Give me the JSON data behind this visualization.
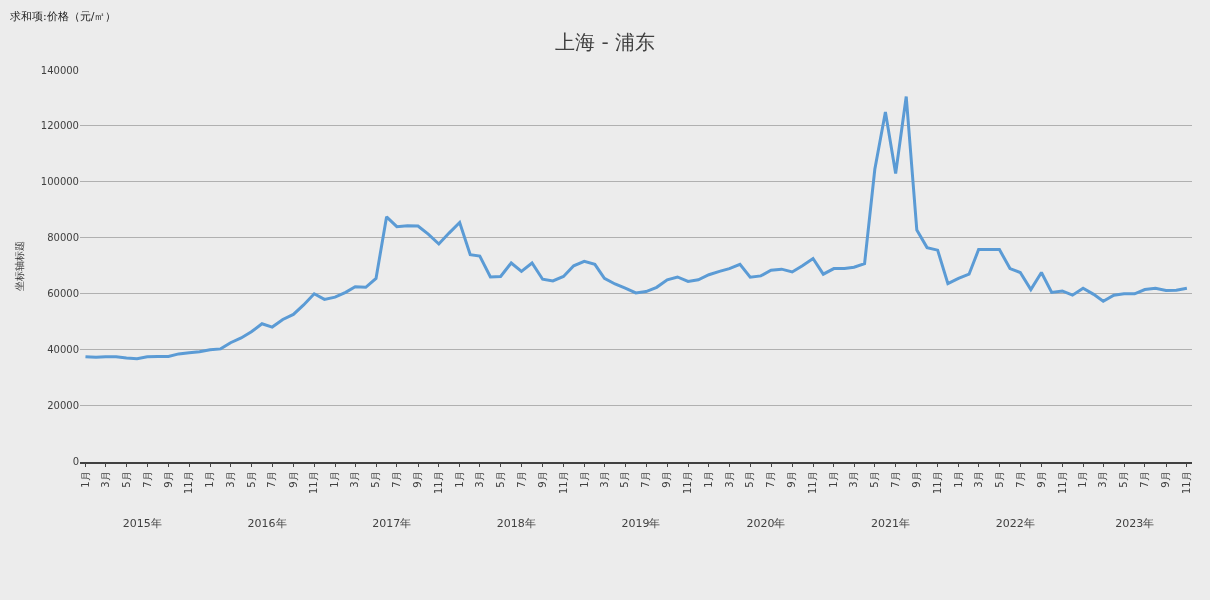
{
  "chart_data": {
    "type": "line",
    "title": "上海 - 浦东",
    "ylabel": "坐标轴标题",
    "annotations": [
      "求和项:价格（元/㎡）"
    ],
    "x": [
      "2015-01",
      "2015-02",
      "2015-03",
      "2015-04",
      "2015-05",
      "2015-06",
      "2015-07",
      "2015-08",
      "2015-09",
      "2015-10",
      "2015-11",
      "2015-12",
      "2016-01",
      "2016-02",
      "2016-03",
      "2016-04",
      "2016-05",
      "2016-06",
      "2016-07",
      "2016-08",
      "2016-09",
      "2016-10",
      "2016-11",
      "2016-12",
      "2017-01",
      "2017-02",
      "2017-03",
      "2017-04",
      "2017-05",
      "2017-06",
      "2017-07",
      "2017-08",
      "2017-09",
      "2017-10",
      "2017-11",
      "2017-12",
      "2018-01",
      "2018-02",
      "2018-03",
      "2018-04",
      "2018-05",
      "2018-06",
      "2018-07",
      "2018-08",
      "2018-09",
      "2018-10",
      "2018-11",
      "2018-12",
      "2019-01",
      "2019-02",
      "2019-03",
      "2019-04",
      "2019-05",
      "2019-06",
      "2019-07",
      "2019-08",
      "2019-09",
      "2019-10",
      "2019-11",
      "2019-12",
      "2020-01",
      "2020-02",
      "2020-03",
      "2020-04",
      "2020-05",
      "2020-06",
      "2020-07",
      "2020-08",
      "2020-09",
      "2020-10",
      "2020-11",
      "2020-12",
      "2021-01",
      "2021-02",
      "2021-03",
      "2021-04",
      "2021-05",
      "2021-06",
      "2021-07",
      "2021-08",
      "2021-09",
      "2021-10",
      "2021-11",
      "2021-12",
      "2022-01",
      "2022-02",
      "2022-03",
      "2022-04",
      "2022-05",
      "2022-06",
      "2022-07",
      "2022-08",
      "2022-09",
      "2022-10",
      "2022-11",
      "2022-12",
      "2023-01",
      "2023-02",
      "2023-03",
      "2023-04",
      "2023-05",
      "2023-06",
      "2023-07",
      "2023-08",
      "2023-09",
      "2023-10",
      "2023-11"
    ],
    "series": [
      {
        "color": "#5b9bd5",
        "values": [
          37500,
          37300,
          37500,
          37500,
          37000,
          36800,
          37500,
          37600,
          37600,
          38500,
          38900,
          39300,
          40000,
          40300,
          42500,
          44200,
          46400,
          49300,
          48100,
          50800,
          52600,
          56000,
          60000,
          58000,
          58800,
          60500,
          62500,
          62300,
          65500,
          87500,
          84000,
          84300,
          84200,
          81300,
          77800,
          81700,
          85500,
          74000,
          73500,
          66000,
          66200,
          71000,
          68000,
          71000,
          65200,
          64600,
          66200,
          70000,
          71600,
          70500,
          65500,
          63500,
          62000,
          60300,
          60800,
          62300,
          65000,
          66000,
          64400,
          65000,
          66800,
          68000,
          69000,
          70500,
          65900,
          66400,
          68400,
          68800,
          67800,
          70000,
          72600,
          67000,
          69000,
          69000,
          69500,
          70800,
          104500,
          125000,
          103000,
          130500,
          82800,
          76500,
          75600,
          63600,
          65500,
          67000,
          75800,
          75800,
          75800,
          69000,
          67600,
          61500,
          67600,
          60500,
          61000,
          59500,
          62000,
          59800,
          57300,
          59500,
          60000,
          60000,
          61500,
          62000,
          61200,
          61300,
          62000
        ]
      }
    ],
    "xlim": [
      "2014-12-16",
      "2023-11-16"
    ],
    "xticks": [
      {
        "value": "2015-01",
        "label": "1月"
      },
      {
        "value": "2015-03",
        "label": "3月"
      },
      {
        "value": "2015-05",
        "label": "5月"
      },
      {
        "value": "2015-07",
        "label": "7月"
      },
      {
        "value": "2015-09",
        "label": "9月"
      },
      {
        "value": "2015-11",
        "label": "11月"
      },
      {
        "value": "2016-01",
        "label": "1月"
      },
      {
        "value": "2016-03",
        "label": "3月"
      },
      {
        "value": "2016-05",
        "label": "5月"
      },
      {
        "value": "2016-07",
        "label": "7月"
      },
      {
        "value": "2016-09",
        "label": "9月"
      },
      {
        "value": "2016-11",
        "label": "11月"
      },
      {
        "value": "2017-01",
        "label": "1月"
      },
      {
        "value": "2017-03",
        "label": "3月"
      },
      {
        "value": "2017-05",
        "label": "5月"
      },
      {
        "value": "2017-07",
        "label": "7月"
      },
      {
        "value": "2017-09",
        "label": "9月"
      },
      {
        "value": "2017-11",
        "label": "11月"
      },
      {
        "value": "2018-01",
        "label": "1月"
      },
      {
        "value": "2018-03",
        "label": "3月"
      },
      {
        "value": "2018-05",
        "label": "5月"
      },
      {
        "value": "2018-07",
        "label": "7月"
      },
      {
        "value": "2018-09",
        "label": "9月"
      },
      {
        "value": "2018-11",
        "label": "11月"
      },
      {
        "value": "2019-01",
        "label": "1月"
      },
      {
        "value": "2019-03",
        "label": "3月"
      },
      {
        "value": "2019-05",
        "label": "5月"
      },
      {
        "value": "2019-07",
        "label": "7月"
      },
      {
        "value": "2019-09",
        "label": "9月"
      },
      {
        "value": "2019-11",
        "label": "11月"
      },
      {
        "value": "2020-01",
        "label": "1月"
      },
      {
        "value": "2020-03",
        "label": "3月"
      },
      {
        "value": "2020-05",
        "label": "5月"
      },
      {
        "value": "2020-07",
        "label": "7月"
      },
      {
        "value": "2020-09",
        "label": "9月"
      },
      {
        "value": "2020-11",
        "label": "11月"
      },
      {
        "value": "2021-01",
        "label": "1月"
      },
      {
        "value": "2021-03",
        "label": "3月"
      },
      {
        "value": "2021-05",
        "label": "5月"
      },
      {
        "value": "2021-07",
        "label": "7月"
      },
      {
        "value": "2021-09",
        "label": "9月"
      },
      {
        "value": "2021-11",
        "label": "11月"
      },
      {
        "value": "2022-01",
        "label": "1月"
      },
      {
        "value": "2022-03",
        "label": "3月"
      },
      {
        "value": "2022-05",
        "label": "5月"
      },
      {
        "value": "2022-07",
        "label": "7月"
      },
      {
        "value": "2022-09",
        "label": "9月"
      },
      {
        "value": "2022-11",
        "label": "11月"
      },
      {
        "value": "2023-01",
        "label": "1月"
      },
      {
        "value": "2023-03",
        "label": "3月"
      },
      {
        "value": "2023-05",
        "label": "5月"
      },
      {
        "value": "2023-07",
        "label": "7月"
      },
      {
        "value": "2023-09",
        "label": "9月"
      },
      {
        "value": "2023-11",
        "label": "11月"
      }
    ],
    "x2lim": [
      "2014-12-16",
      "2023-11-16"
    ],
    "x2ticks": [
      {
        "value": "2015-06-16",
        "label": "2015年"
      },
      {
        "value": "2016-06-16",
        "label": "2016年"
      },
      {
        "value": "2017-06-16",
        "label": "2017年"
      },
      {
        "value": "2018-06-16",
        "label": "2018年"
      },
      {
        "value": "2019-06-16",
        "label": "2019年"
      },
      {
        "value": "2020-06-16",
        "label": "2020年"
      },
      {
        "value": "2021-06-16",
        "label": "2021年"
      },
      {
        "value": "2022-06-16",
        "label": "2022年"
      },
      {
        "value": "2023-06-01",
        "label": "2023年"
      }
    ],
    "ylim": [
      0,
      140000
    ],
    "yticks": [
      0,
      20000,
      40000,
      60000,
      80000,
      100000,
      120000,
      140000
    ],
    "grid": "y",
    "marker": "none",
    "line_style": "solid"
  }
}
